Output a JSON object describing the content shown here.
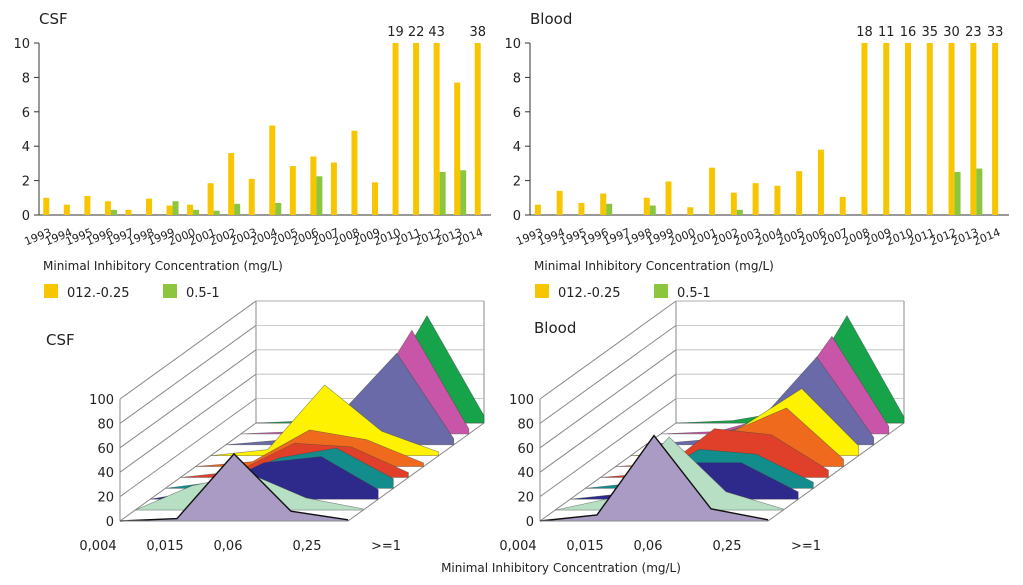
{
  "colors": {
    "series1": "#F7C600",
    "series2": "#8CC63F",
    "axis": "#333333",
    "surface": [
      "#A99BC4",
      "#B7DFC3",
      "#2E2A8C",
      "#138C8C",
      "#E0402A",
      "#F06A1E",
      "#FFF200",
      "#6A6AA8",
      "#C855A8",
      "#17A34A"
    ]
  },
  "shared": {
    "mic_label": "Minimal Inhibitory Concentration (mg/L)"
  },
  "chart_data": [
    {
      "type": "bar",
      "title": "CSF",
      "ylim": [
        0,
        10
      ],
      "yticks": [
        "0",
        "2",
        "4",
        "6",
        "8",
        "10"
      ],
      "xlabel": "Minimal Inhibitory Concentration (mg/L)",
      "categories": [
        "1993",
        "1994",
        "1995",
        "1996",
        "1997",
        "1998",
        "1999",
        "2000",
        "2001",
        "2002",
        "2003",
        "2004",
        "2005",
        "2006",
        "2007",
        "2008",
        "2009",
        "2010",
        "2011",
        "2012",
        "2013",
        "2014"
      ],
      "series": [
        {
          "name": "012.-0.25",
          "values": [
            1.0,
            0.6,
            1.1,
            0.8,
            0.3,
            0.95,
            0.55,
            0.6,
            1.85,
            3.6,
            2.1,
            5.2,
            2.85,
            3.4,
            3.05,
            4.9,
            1.9,
            10,
            10,
            10,
            7.7,
            10
          ]
        },
        {
          "name": "0.5-1",
          "values": [
            0,
            0,
            0,
            0.3,
            0,
            0,
            0.8,
            0.3,
            0.25,
            0.65,
            0,
            0.7,
            0,
            2.25,
            0,
            0,
            0,
            0,
            0,
            2.5,
            2.6,
            0
          ]
        }
      ],
      "overflow_labels": [
        {
          "category": "2010",
          "label": "19"
        },
        {
          "category": "2011",
          "label": "22"
        },
        {
          "category": "2012",
          "label": "43"
        },
        {
          "category": "2014",
          "label": "38"
        }
      ]
    },
    {
      "type": "bar",
      "title": "Blood",
      "ylim": [
        0,
        10
      ],
      "yticks": [
        "0",
        "2",
        "4",
        "6",
        "8",
        "10"
      ],
      "xlabel": "Minimal Inhibitory Concentration (mg/L)",
      "categories": [
        "1993",
        "1994",
        "1995",
        "1996",
        "1997",
        "1998",
        "1999",
        "2000",
        "2001",
        "2002",
        "2003",
        "2004",
        "2005",
        "2006",
        "2007",
        "2008",
        "2009",
        "2010",
        "2011",
        "2012",
        "2013",
        "2014"
      ],
      "series": [
        {
          "name": "012.-0.25",
          "values": [
            0.6,
            1.4,
            0.7,
            1.25,
            0,
            1.0,
            1.95,
            0.45,
            2.75,
            1.3,
            1.85,
            1.7,
            2.55,
            3.8,
            1.05,
            10,
            10,
            10,
            10,
            10,
            10,
            10
          ]
        },
        {
          "name": "0.5-1",
          "values": [
            0,
            0,
            0,
            0.65,
            0,
            0.55,
            0,
            0,
            0,
            0.3,
            0,
            0,
            0,
            0,
            0,
            0,
            0,
            0,
            0,
            2.5,
            2.7,
            0
          ]
        }
      ],
      "overflow_labels": [
        {
          "category": "2008",
          "label": "18"
        },
        {
          "category": "2009",
          "label": "11"
        },
        {
          "category": "2010",
          "label": "16"
        },
        {
          "category": "2011",
          "label": "35"
        },
        {
          "category": "2012",
          "label": "30"
        },
        {
          "category": "2013",
          "label": "23"
        },
        {
          "category": "2014",
          "label": "33"
        }
      ]
    },
    {
      "type": "area",
      "title": "CSF",
      "ylim": [
        0,
        100
      ],
      "yticks": [
        "0",
        "20",
        "40",
        "60",
        "80",
        "100"
      ],
      "categories": [
        "0,004",
        "0,015",
        "0,06",
        "0,25",
        ">=1"
      ],
      "layers": [
        [
          0,
          2,
          55,
          8,
          1
        ],
        [
          0,
          20,
          30,
          10,
          1
        ],
        [
          0,
          8,
          30,
          35,
          8
        ],
        [
          0,
          6,
          25,
          33,
          8
        ],
        [
          0,
          5,
          28,
          25,
          4
        ],
        [
          0,
          4,
          30,
          22,
          3
        ],
        [
          0,
          5,
          58,
          20,
          3
        ],
        [
          0,
          4,
          25,
          75,
          5
        ],
        [
          0,
          2,
          10,
          85,
          4
        ],
        [
          0,
          2,
          8,
          88,
          6
        ]
      ]
    },
    {
      "type": "area",
      "title": "Blood",
      "ylim": [
        0,
        100
      ],
      "yticks": [
        "0",
        "20",
        "40",
        "60",
        "80",
        "100"
      ],
      "categories": [
        "0,004",
        "0,015",
        "0,06",
        "0,25",
        ">=1"
      ],
      "layers": [
        [
          0,
          5,
          70,
          10,
          1
        ],
        [
          0,
          10,
          60,
          15,
          1
        ],
        [
          0,
          5,
          30,
          30,
          6
        ],
        [
          0,
          5,
          32,
          28,
          5
        ],
        [
          0,
          4,
          40,
          35,
          6
        ],
        [
          0,
          3,
          28,
          48,
          6
        ],
        [
          0,
          3,
          25,
          55,
          8
        ],
        [
          0,
          4,
          20,
          72,
          6
        ],
        [
          0,
          2,
          15,
          80,
          6
        ],
        [
          0,
          2,
          10,
          88,
          5
        ]
      ]
    }
  ]
}
